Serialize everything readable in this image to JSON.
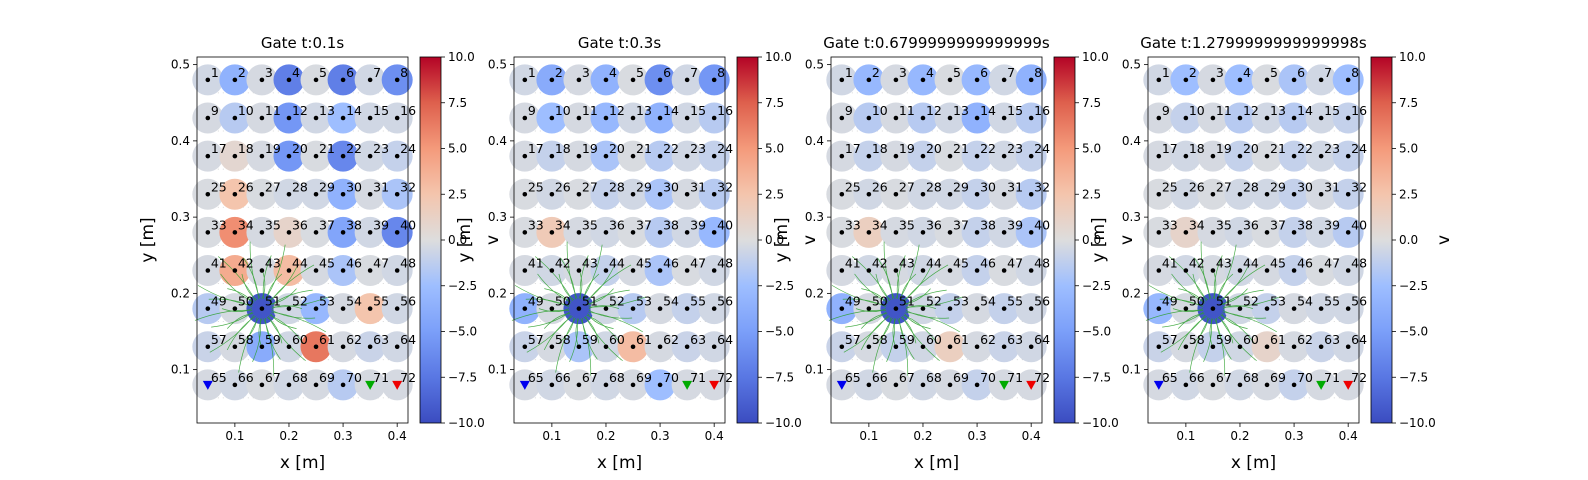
{
  "chart_data": {
    "type": "scatter",
    "xlabel": "x [m]",
    "ylabel": "y [m]",
    "colorbar_label": "v",
    "colormap": "coolwarm",
    "xlim": [
      0.03,
      0.42
    ],
    "ylim": [
      0.03,
      0.51
    ],
    "xticks": [
      "0.1",
      "0.2",
      "0.3",
      "0.4"
    ],
    "yticks": [
      "0.1",
      "0.2",
      "0.3",
      "0.4",
      "0.5"
    ],
    "colorbar_range": [
      -10,
      10
    ],
    "colorbar_ticks": [
      "10.0",
      "7.5",
      "5.0",
      "2.5",
      "0.0",
      "−2.5",
      "−5.0",
      "−7.5",
      "−10.0"
    ],
    "electrode_grid": {
      "columns": 8,
      "rows": 9,
      "x0": 0.05,
      "dx": 0.05,
      "y0": 0.08,
      "dy": 0.05,
      "first_label": 1
    },
    "electrode_labels": [
      "1",
      "2",
      "3",
      "4",
      "5",
      "6",
      "7",
      "8",
      "9",
      "10",
      "11",
      "12",
      "13",
      "14",
      "15",
      "16",
      "17",
      "18",
      "19",
      "20",
      "21",
      "22",
      "23",
      "24",
      "25",
      "26",
      "27",
      "28",
      "29",
      "30",
      "31",
      "32",
      "33",
      "34",
      "35",
      "36",
      "37",
      "38",
      "39",
      "40",
      "41",
      "42",
      "43",
      "44",
      "45",
      "46",
      "47",
      "48",
      "49",
      "50",
      "51",
      "52",
      "53",
      "54",
      "55",
      "56",
      "57",
      "58",
      "59",
      "60",
      "61",
      "62",
      "63",
      "64",
      "65",
      "66",
      "67",
      "68",
      "69",
      "70",
      "71",
      "72"
    ],
    "marker_colors": {
      "dot": "#000000",
      "blue_marker": "#0000ee",
      "green_marker": "#00aa00",
      "red_marker": "#ee0000",
      "field_lines": "#2ca02c"
    },
    "special_markers": [
      {
        "x": 0.05,
        "y": 0.08,
        "color": "#0000ee"
      },
      {
        "x": 0.35,
        "y": 0.08,
        "color": "#00aa00"
      },
      {
        "x": 0.4,
        "y": 0.08,
        "color": "#ee0000"
      }
    ],
    "source_point": {
      "x": 0.15,
      "y": 0.18
    },
    "panels": [
      {
        "title": "Gate t:0.1s",
        "values": [
          [
            -0.5,
            -3.5,
            -0.3,
            -7.0,
            -0.2,
            -7.0,
            -0.5,
            -6.0
          ],
          [
            -0.3,
            -1.5,
            -0.3,
            -5.5,
            -0.5,
            -2.5,
            -0.5,
            -0.5
          ],
          [
            -0.3,
            0.7,
            -0.3,
            -5.5,
            -0.2,
            -6.5,
            -0.5,
            -1.0
          ],
          [
            -0.2,
            2.5,
            -0.2,
            -0.5,
            -0.5,
            -3.5,
            -0.3,
            -2.0
          ],
          [
            -0.2,
            5.5,
            -0.3,
            1.0,
            -0.2,
            -4.5,
            -0.5,
            -6.5
          ],
          [
            -0.3,
            4.0,
            -0.3,
            3.0,
            -0.3,
            -2.0,
            -0.2,
            -0.5
          ],
          [
            -1.5,
            -0.3,
            -9.5,
            -0.5,
            -3.0,
            -0.3,
            2.5,
            -0.5
          ],
          [
            -0.8,
            -0.3,
            -4.0,
            -0.5,
            6.5,
            -0.3,
            -0.8,
            -0.5
          ],
          [
            -0.3,
            -0.5,
            -0.2,
            -0.5,
            -0.3,
            -1.5,
            -0.3,
            -0.3
          ]
        ]
      },
      {
        "title": "Gate t:0.3s",
        "values": [
          [
            -0.5,
            -4.0,
            -0.3,
            -3.5,
            -0.2,
            -6.0,
            -0.5,
            -5.5
          ],
          [
            -0.3,
            -2.5,
            -0.3,
            -3.0,
            -0.5,
            -3.5,
            -0.5,
            -1.5
          ],
          [
            -0.3,
            -1.0,
            -0.3,
            -2.0,
            -0.2,
            -1.5,
            -0.5,
            -1.0
          ],
          [
            -0.2,
            -0.5,
            -0.2,
            -1.0,
            -0.5,
            -2.0,
            -0.3,
            -1.5
          ],
          [
            -0.2,
            2.0,
            -0.3,
            -0.5,
            -0.2,
            -1.5,
            -0.5,
            -3.0
          ],
          [
            -0.3,
            -0.5,
            -0.3,
            -1.0,
            -0.3,
            -2.0,
            -0.2,
            -0.5
          ],
          [
            -3.5,
            -0.3,
            -9.5,
            -0.5,
            -1.5,
            -0.3,
            -1.0,
            -0.5
          ],
          [
            -0.8,
            -0.3,
            -2.0,
            -0.5,
            3.0,
            -0.3,
            -0.8,
            -0.5
          ],
          [
            -0.3,
            -0.5,
            -0.2,
            -0.5,
            -0.3,
            -2.5,
            -0.3,
            -0.3
          ]
        ]
      },
      {
        "title": "Gate t:0.6799999999999999s",
        "values": [
          [
            -0.5,
            -3.0,
            -0.3,
            -3.0,
            -0.2,
            -3.0,
            -0.5,
            -3.5
          ],
          [
            -0.3,
            -1.5,
            -0.3,
            -1.5,
            -0.5,
            -3.5,
            -0.5,
            -1.5
          ],
          [
            -0.3,
            -1.0,
            -0.3,
            -1.0,
            -0.2,
            -1.0,
            -0.5,
            -1.0
          ],
          [
            -0.2,
            -0.5,
            -0.2,
            -0.5,
            -0.5,
            -1.0,
            -0.3,
            -1.5
          ],
          [
            -0.2,
            1.5,
            -0.3,
            -0.5,
            -0.2,
            -1.0,
            -0.5,
            -2.0
          ],
          [
            -0.3,
            -0.5,
            -0.3,
            -0.5,
            -0.3,
            -1.0,
            -0.2,
            -0.5
          ],
          [
            -3.5,
            -0.3,
            -9.5,
            -0.5,
            -1.0,
            -0.3,
            -1.0,
            -0.5
          ],
          [
            -0.8,
            -0.3,
            -1.0,
            -0.5,
            1.5,
            -0.3,
            -0.8,
            -0.5
          ],
          [
            -0.3,
            -0.5,
            -0.2,
            -0.5,
            -0.3,
            -1.0,
            -0.3,
            -0.3
          ]
        ]
      },
      {
        "title": "Gate t:1.2799999999999998s",
        "values": [
          [
            -0.5,
            -2.5,
            -0.3,
            -2.5,
            -0.2,
            -2.0,
            -0.5,
            -2.5
          ],
          [
            -0.3,
            -1.0,
            -0.3,
            -1.5,
            -0.5,
            -1.5,
            -0.5,
            -1.0
          ],
          [
            -0.3,
            -0.5,
            -0.3,
            -1.0,
            -0.2,
            -1.0,
            -0.5,
            -1.0
          ],
          [
            -0.2,
            -0.5,
            -0.2,
            -0.5,
            -0.5,
            -1.0,
            -0.3,
            -1.0
          ],
          [
            -0.2,
            1.0,
            -0.3,
            -0.5,
            -0.2,
            -1.0,
            -0.5,
            -1.5
          ],
          [
            -0.3,
            -0.5,
            -0.3,
            -0.5,
            -0.3,
            -1.0,
            -0.2,
            -0.5
          ],
          [
            -3.0,
            -0.3,
            -9.5,
            -0.5,
            -1.0,
            -0.3,
            -0.5,
            -0.5
          ],
          [
            -0.8,
            -0.3,
            -1.0,
            -0.5,
            1.0,
            -0.3,
            -0.8,
            -0.5
          ],
          [
            -0.3,
            -0.5,
            -0.2,
            -0.5,
            -0.3,
            -1.0,
            -0.3,
            -0.3
          ]
        ]
      }
    ]
  }
}
